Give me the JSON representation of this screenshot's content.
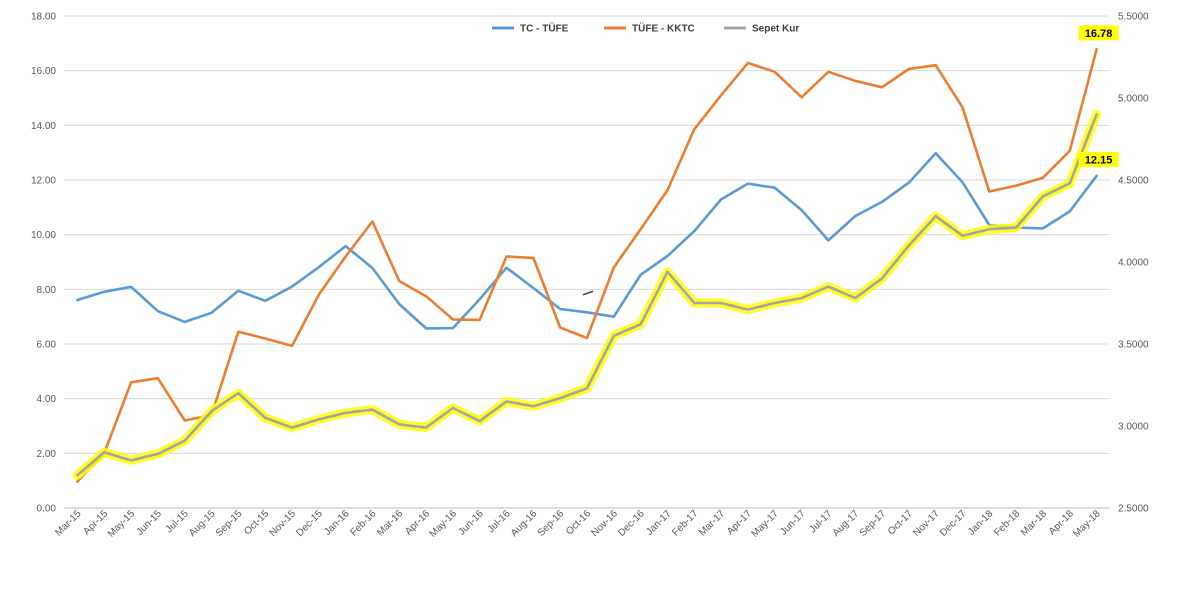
{
  "chart_data": {
    "type": "line",
    "categories": [
      "Mar-15",
      "Apr-15",
      "May-15",
      "Jun-15",
      "Jul-15",
      "Aug-15",
      "Sep-15",
      "Oct-15",
      "Nov-15",
      "Dec-15",
      "Jan-16",
      "Feb-16",
      "Mar-16",
      "Apr-16",
      "May-16",
      "Jun-16",
      "Jul-16",
      "Aug-16",
      "Sep-16",
      "Oct-16",
      "Nov-16",
      "Dec-16",
      "Jan-17",
      "Feb-17",
      "Mar-17",
      "Apr-17",
      "May-17",
      "Jun-17",
      "Jul-17",
      "Aug-17",
      "Sep-17",
      "Oct-17",
      "Nov-17",
      "Dec-17",
      "Jan-18",
      "Feb-18",
      "Mar-18",
      "Apr-18",
      "May-18"
    ],
    "series": [
      {
        "name": "TC - TÜFE",
        "axis": "left",
        "color": "#5B9BD5",
        "values": [
          7.61,
          7.91,
          8.09,
          7.2,
          6.81,
          7.14,
          7.95,
          7.58,
          8.1,
          8.81,
          9.58,
          8.78,
          7.46,
          6.57,
          6.58,
          7.64,
          8.79,
          8.05,
          7.28,
          7.16,
          7.0,
          8.53,
          9.22,
          10.13,
          11.29,
          11.87,
          11.72,
          10.9,
          9.79,
          10.68,
          11.2,
          11.9,
          12.98,
          11.92,
          10.35,
          10.26,
          10.23,
          10.85,
          12.15
        ]
      },
      {
        "name": "TÜFE - KKTC",
        "axis": "left",
        "color": "#ED7D31",
        "values": [
          0.97,
          2.0,
          4.6,
          4.75,
          3.2,
          3.4,
          6.45,
          6.2,
          5.93,
          7.8,
          9.2,
          10.48,
          8.3,
          7.75,
          6.9,
          6.88,
          9.2,
          9.15,
          6.6,
          6.22,
          8.8,
          10.2,
          11.63,
          13.86,
          15.1,
          16.28,
          15.96,
          15.03,
          15.96,
          15.63,
          15.39,
          16.06,
          16.2,
          14.66,
          11.58,
          11.79,
          12.08,
          13.07,
          16.78
        ]
      },
      {
        "name": "Sepet Kur",
        "axis": "right",
        "color": "#A5A5A5",
        "highlight": "#FFFF00",
        "values": [
          2.7,
          2.84,
          2.79,
          2.83,
          2.91,
          3.09,
          3.2,
          3.05,
          2.99,
          3.04,
          3.08,
          3.1,
          3.01,
          2.99,
          3.11,
          3.03,
          3.15,
          3.12,
          3.17,
          3.23,
          3.55,
          3.62,
          3.94,
          3.75,
          3.75,
          3.71,
          3.75,
          3.78,
          3.85,
          3.78,
          3.9,
          4.1,
          4.28,
          4.16,
          4.2,
          4.21,
          4.4,
          4.48,
          4.9
        ]
      }
    ],
    "stray_mark": {
      "x": [
        "Oct-16",
        "Oct-16"
      ],
      "values": [
        7.8,
        7.93
      ]
    },
    "y_left": {
      "min": 0,
      "max": 18,
      "step": 2,
      "ticks": [
        "0.00",
        "2.00",
        "4.00",
        "6.00",
        "8.00",
        "10.00",
        "12.00",
        "14.00",
        "16.00",
        "18.00"
      ]
    },
    "y_right": {
      "min": 2.5,
      "max": 5.5,
      "step": 0.5,
      "ticks": [
        "2.5000",
        "3.0000",
        "3.5000",
        "4.0000",
        "4.5000",
        "5.0000",
        "5.5000"
      ]
    },
    "grid": true,
    "legend_position": "top-center",
    "data_labels": [
      {
        "series": "TÜFE - KKTC",
        "category": "May-18",
        "text": "16.78"
      },
      {
        "series": "TC - TÜFE",
        "category": "May-18",
        "text": "12.15"
      }
    ]
  }
}
